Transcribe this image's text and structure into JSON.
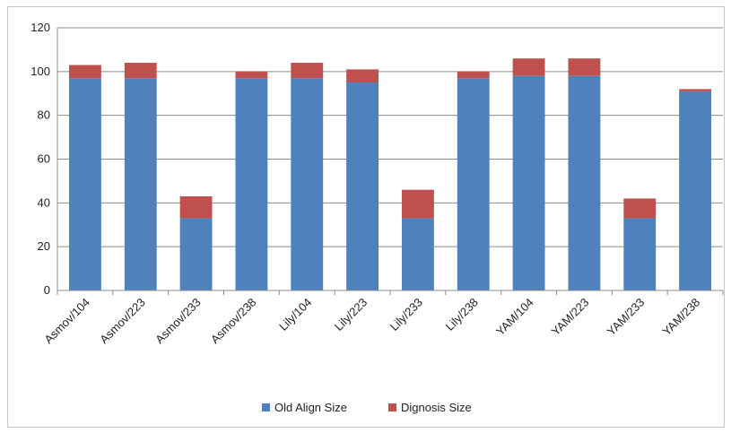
{
  "chart_data": {
    "type": "bar",
    "stacked": true,
    "categories": [
      "Asmov/104",
      "Asmov/223",
      "Asmov/233",
      "Asmov/238",
      "Lily/104",
      "Lily/223",
      "Lily/233",
      "Lily/238",
      "YAM/104",
      "YAM/223",
      "YAM/233",
      "YAM/238"
    ],
    "series": [
      {
        "name": "Old Align Size",
        "color": "#4f81bd",
        "values": [
          97,
          97,
          33,
          97,
          97,
          95,
          33,
          97,
          98,
          98,
          33,
          91
        ]
      },
      {
        "name": "Dignosis Size",
        "color": "#c0504d",
        "values": [
          6,
          7,
          10,
          3,
          7,
          6,
          13,
          3,
          8,
          8,
          9,
          1
        ]
      }
    ],
    "ylim": [
      0,
      120
    ],
    "yticks": [
      "0",
      "20",
      "40",
      "60",
      "80",
      "100",
      "120"
    ],
    "grid": true,
    "legend_position": "bottom"
  }
}
